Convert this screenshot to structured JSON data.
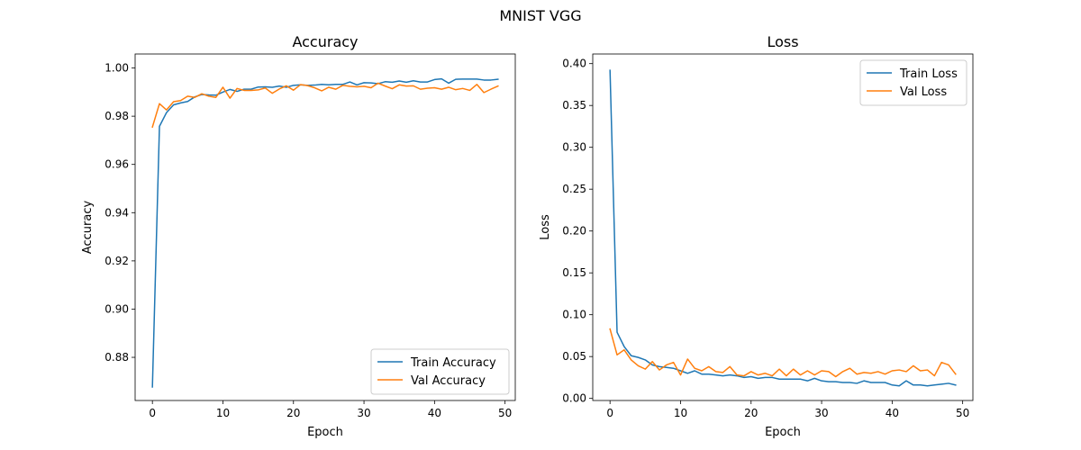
{
  "figure": {
    "suptitle": "MNIST VGG"
  },
  "colors": {
    "train": "#1f77b4",
    "val": "#ff7f0e"
  },
  "chart_data": [
    {
      "type": "line",
      "title": "Accuracy",
      "xlabel": "Epoch",
      "ylabel": "Accuracy",
      "xlim": [
        -2.45,
        51.45
      ],
      "ylim": [
        0.8621,
        1.0058
      ],
      "xticks": [
        0,
        10,
        20,
        30,
        40,
        50
      ],
      "yticks": [
        0.88,
        0.9,
        0.92,
        0.94,
        0.96,
        0.98,
        1.0
      ],
      "ytick_labels": [
        "0.88",
        "0.90",
        "0.92",
        "0.94",
        "0.96",
        "0.98",
        "1.00"
      ],
      "grid": false,
      "legend_loc": "lower-right",
      "series": [
        {
          "name": "Train Accuracy",
          "color": "#1f77b4",
          "x": [
            0,
            1,
            2,
            3,
            4,
            5,
            6,
            7,
            8,
            9,
            10,
            11,
            12,
            13,
            14,
            15,
            16,
            17,
            18,
            19,
            20,
            21,
            22,
            23,
            24,
            25,
            26,
            27,
            28,
            29,
            30,
            31,
            32,
            33,
            34,
            35,
            36,
            37,
            38,
            39,
            40,
            41,
            42,
            43,
            44,
            45,
            46,
            47,
            48,
            49
          ],
          "values": [
            0.8677,
            0.9758,
            0.9815,
            0.9847,
            0.9855,
            0.9861,
            0.988,
            0.989,
            0.9888,
            0.9887,
            0.99,
            0.9911,
            0.9903,
            0.9912,
            0.9912,
            0.9921,
            0.9922,
            0.992,
            0.9925,
            0.992,
            0.9928,
            0.993,
            0.9928,
            0.9929,
            0.9932,
            0.993,
            0.9932,
            0.9932,
            0.9942,
            0.993,
            0.9939,
            0.9938,
            0.9935,
            0.9943,
            0.9941,
            0.9946,
            0.9941,
            0.9947,
            0.9942,
            0.9942,
            0.9952,
            0.9955,
            0.9937,
            0.9953,
            0.9954,
            0.9954,
            0.9954,
            0.995,
            0.995,
            0.9953
          ]
        },
        {
          "name": "Val Accuracy",
          "color": "#ff7f0e",
          "x": [
            0,
            1,
            2,
            3,
            4,
            5,
            6,
            7,
            8,
            9,
            10,
            11,
            12,
            13,
            14,
            15,
            16,
            17,
            18,
            19,
            20,
            21,
            22,
            23,
            24,
            25,
            26,
            27,
            28,
            29,
            30,
            31,
            32,
            33,
            34,
            35,
            36,
            37,
            38,
            39,
            40,
            41,
            42,
            43,
            44,
            45,
            46,
            47,
            48,
            49
          ],
          "values": [
            0.9755,
            0.9852,
            0.9826,
            0.986,
            0.9865,
            0.9883,
            0.9878,
            0.9893,
            0.9883,
            0.9878,
            0.992,
            0.9875,
            0.9915,
            0.9907,
            0.9907,
            0.9909,
            0.9917,
            0.9895,
            0.9913,
            0.9926,
            0.9908,
            0.9931,
            0.9927,
            0.9918,
            0.9905,
            0.992,
            0.9912,
            0.9928,
            0.9924,
            0.9922,
            0.9924,
            0.9918,
            0.9937,
            0.9925,
            0.9914,
            0.993,
            0.9925,
            0.9926,
            0.9912,
            0.9916,
            0.9918,
            0.9912,
            0.992,
            0.991,
            0.9915,
            0.9907,
            0.9932,
            0.9898,
            0.9912,
            0.9925
          ]
        }
      ]
    },
    {
      "type": "line",
      "title": "Loss",
      "xlabel": "Epoch",
      "ylabel": "Loss",
      "xlim": [
        -2.45,
        51.45
      ],
      "ylim": [
        -0.0025,
        0.4115
      ],
      "xticks": [
        0,
        10,
        20,
        30,
        40,
        50
      ],
      "yticks": [
        0.0,
        0.05,
        0.1,
        0.15,
        0.2,
        0.25,
        0.3,
        0.35,
        0.4
      ],
      "ytick_labels": [
        "0.00",
        "0.05",
        "0.10",
        "0.15",
        "0.20",
        "0.25",
        "0.30",
        "0.35",
        "0.40"
      ],
      "grid": false,
      "legend_loc": "upper-right",
      "series": [
        {
          "name": "Train Loss",
          "color": "#1f77b4",
          "x": [
            0,
            1,
            2,
            3,
            4,
            5,
            6,
            7,
            8,
            9,
            10,
            11,
            12,
            13,
            14,
            15,
            16,
            17,
            18,
            19,
            20,
            21,
            22,
            23,
            24,
            25,
            26,
            27,
            28,
            29,
            30,
            31,
            32,
            33,
            34,
            35,
            36,
            37,
            38,
            39,
            40,
            41,
            42,
            43,
            44,
            45,
            46,
            47,
            48,
            49
          ],
          "values": [
            0.392,
            0.079,
            0.062,
            0.051,
            0.049,
            0.046,
            0.04,
            0.038,
            0.037,
            0.036,
            0.033,
            0.03,
            0.033,
            0.029,
            0.029,
            0.028,
            0.027,
            0.028,
            0.027,
            0.025,
            0.026,
            0.024,
            0.025,
            0.025,
            0.023,
            0.023,
            0.023,
            0.023,
            0.021,
            0.024,
            0.021,
            0.02,
            0.02,
            0.019,
            0.019,
            0.018,
            0.021,
            0.019,
            0.019,
            0.019,
            0.016,
            0.015,
            0.021,
            0.016,
            0.016,
            0.015,
            0.016,
            0.017,
            0.018,
            0.016
          ]
        },
        {
          "name": "Val Loss",
          "color": "#ff7f0e",
          "x": [
            0,
            1,
            2,
            3,
            4,
            5,
            6,
            7,
            8,
            9,
            10,
            11,
            12,
            13,
            14,
            15,
            16,
            17,
            18,
            19,
            20,
            21,
            22,
            23,
            24,
            25,
            26,
            27,
            28,
            29,
            30,
            31,
            32,
            33,
            34,
            35,
            36,
            37,
            38,
            39,
            40,
            41,
            42,
            43,
            44,
            45,
            46,
            47,
            48,
            49
          ],
          "values": [
            0.083,
            0.052,
            0.058,
            0.046,
            0.039,
            0.035,
            0.044,
            0.034,
            0.04,
            0.043,
            0.028,
            0.047,
            0.036,
            0.033,
            0.038,
            0.032,
            0.031,
            0.038,
            0.028,
            0.027,
            0.032,
            0.028,
            0.03,
            0.027,
            0.035,
            0.027,
            0.035,
            0.028,
            0.033,
            0.028,
            0.033,
            0.032,
            0.026,
            0.032,
            0.036,
            0.029,
            0.031,
            0.03,
            0.032,
            0.029,
            0.033,
            0.034,
            0.032,
            0.039,
            0.033,
            0.034,
            0.027,
            0.043,
            0.04,
            0.029
          ]
        }
      ]
    }
  ]
}
